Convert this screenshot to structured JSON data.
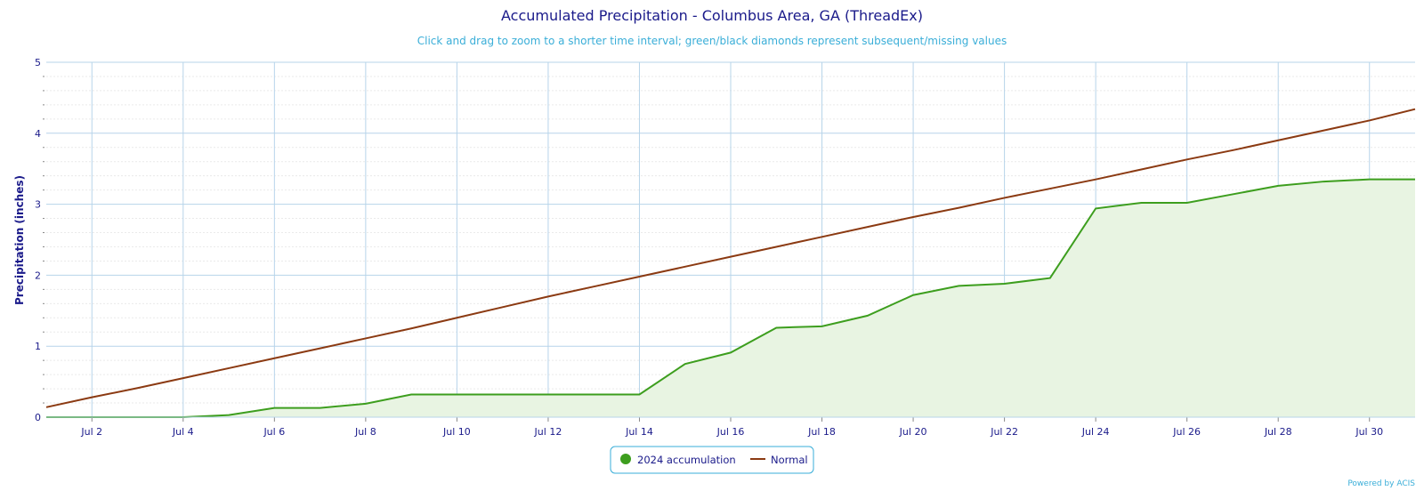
{
  "colors": {
    "accumulation": "#3d9e1e",
    "accumulation_fill": "#e8f4e2",
    "normal": "#8b3a12",
    "grid": "#b7d4ea",
    "axis_text": "#1a1a8a",
    "subtitle": "#3aaed8"
  },
  "chart_data": {
    "type": "area",
    "title": "Accumulated Precipitation - Columbus Area, GA (ThreadEx)",
    "subtitle": "Click and drag to zoom to a shorter time interval; green/black diamonds represent subsequent/missing values",
    "xlabel": "",
    "ylabel": "Precipitation (inches)",
    "ylim": [
      0,
      5
    ],
    "yticks": [
      "0",
      "1",
      "2",
      "3",
      "4",
      "5"
    ],
    "x": [
      "Jul 1",
      "Jul 2",
      "Jul 3",
      "Jul 4",
      "Jul 5",
      "Jul 6",
      "Jul 7",
      "Jul 8",
      "Jul 9",
      "Jul 10",
      "Jul 11",
      "Jul 12",
      "Jul 13",
      "Jul 14",
      "Jul 15",
      "Jul 16",
      "Jul 17",
      "Jul 18",
      "Jul 19",
      "Jul 20",
      "Jul 21",
      "Jul 22",
      "Jul 23",
      "Jul 24",
      "Jul 25",
      "Jul 26",
      "Jul 27",
      "Jul 28",
      "Jul 29",
      "Jul 30",
      "Jul 31"
    ],
    "xticks": [
      "Jul 2",
      "Jul 4",
      "Jul 6",
      "Jul 8",
      "Jul 10",
      "Jul 12",
      "Jul 14",
      "Jul 16",
      "Jul 18",
      "Jul 20",
      "Jul 22",
      "Jul 24",
      "Jul 26",
      "Jul 28",
      "Jul 30"
    ],
    "series": [
      {
        "name": "2024 accumulation",
        "type": "area",
        "values": [
          0,
          0,
          0,
          0,
          0.03,
          0.13,
          0.13,
          0.19,
          0.32,
          0.32,
          0.32,
          0.32,
          0.32,
          0.32,
          0.75,
          0.91,
          1.26,
          1.28,
          1.43,
          1.72,
          1.85,
          1.88,
          1.96,
          2.94,
          3.02,
          3.02,
          3.14,
          3.26,
          3.32,
          3.35,
          3.35
        ]
      },
      {
        "name": "Normal",
        "type": "line",
        "values": [
          0.14,
          0.28,
          0.41,
          0.55,
          0.69,
          0.83,
          0.97,
          1.11,
          1.25,
          1.4,
          1.55,
          1.7,
          1.84,
          1.98,
          2.12,
          2.26,
          2.4,
          2.54,
          2.68,
          2.82,
          2.95,
          3.09,
          3.22,
          3.35,
          3.49,
          3.63,
          3.76,
          3.9,
          4.04,
          4.18,
          4.34
        ]
      }
    ],
    "grid": true,
    "legend_position": "bottom-center",
    "credit": "Powered by ACIS"
  }
}
